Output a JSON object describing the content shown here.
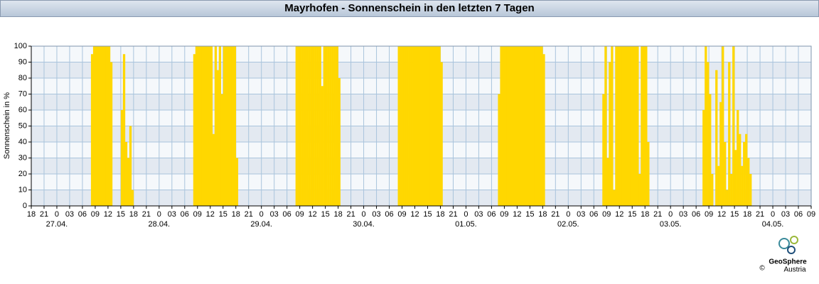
{
  "chart_data": {
    "type": "bar",
    "title": "Mayrhofen - Sonnenschein in den letzten 7 Tagen",
    "ylabel": "Sonnenschein in %",
    "color": "#ffd700",
    "grid": true,
    "xlim": [
      0,
      183
    ],
    "ylim": [
      0,
      100
    ],
    "yticks": [
      0,
      10,
      20,
      30,
      40,
      50,
      60,
      70,
      80,
      90,
      100
    ],
    "xticks": [
      {
        "value": 0,
        "label": "18"
      },
      {
        "value": 3,
        "label": "21"
      },
      {
        "value": 6,
        "label": "0"
      },
      {
        "value": 9,
        "label": "03"
      },
      {
        "value": 12,
        "label": "06"
      },
      {
        "value": 15,
        "label": "09"
      },
      {
        "value": 18,
        "label": "12"
      },
      {
        "value": 21,
        "label": "15"
      },
      {
        "value": 24,
        "label": "18"
      },
      {
        "value": 27,
        "label": "21"
      },
      {
        "value": 30,
        "label": "0"
      },
      {
        "value": 33,
        "label": "03"
      },
      {
        "value": 36,
        "label": "06"
      },
      {
        "value": 39,
        "label": "09"
      },
      {
        "value": 42,
        "label": "12"
      },
      {
        "value": 45,
        "label": "15"
      },
      {
        "value": 48,
        "label": "18"
      },
      {
        "value": 51,
        "label": "21"
      },
      {
        "value": 54,
        "label": "0"
      },
      {
        "value": 57,
        "label": "03"
      },
      {
        "value": 60,
        "label": "06"
      },
      {
        "value": 63,
        "label": "09"
      },
      {
        "value": 66,
        "label": "12"
      },
      {
        "value": 69,
        "label": "15"
      },
      {
        "value": 72,
        "label": "18"
      },
      {
        "value": 75,
        "label": "21"
      },
      {
        "value": 78,
        "label": "0"
      },
      {
        "value": 81,
        "label": "03"
      },
      {
        "value": 84,
        "label": "06"
      },
      {
        "value": 87,
        "label": "09"
      },
      {
        "value": 90,
        "label": "12"
      },
      {
        "value": 93,
        "label": "15"
      },
      {
        "value": 96,
        "label": "18"
      },
      {
        "value": 99,
        "label": "21"
      },
      {
        "value": 102,
        "label": "0"
      },
      {
        "value": 105,
        "label": "03"
      },
      {
        "value": 108,
        "label": "06"
      },
      {
        "value": 111,
        "label": "09"
      },
      {
        "value": 114,
        "label": "12"
      },
      {
        "value": 117,
        "label": "15"
      },
      {
        "value": 120,
        "label": "18"
      },
      {
        "value": 123,
        "label": "21"
      },
      {
        "value": 126,
        "label": "0"
      },
      {
        "value": 129,
        "label": "03"
      },
      {
        "value": 132,
        "label": "06"
      },
      {
        "value": 135,
        "label": "09"
      },
      {
        "value": 138,
        "label": "12"
      },
      {
        "value": 141,
        "label": "15"
      },
      {
        "value": 144,
        "label": "18"
      },
      {
        "value": 147,
        "label": "21"
      },
      {
        "value": 150,
        "label": "0"
      },
      {
        "value": 153,
        "label": "03"
      },
      {
        "value": 156,
        "label": "06"
      },
      {
        "value": 159,
        "label": "09"
      },
      {
        "value": 162,
        "label": "12"
      },
      {
        "value": 165,
        "label": "15"
      },
      {
        "value": 168,
        "label": "18"
      },
      {
        "value": 171,
        "label": "21"
      },
      {
        "value": 174,
        "label": "0"
      },
      {
        "value": 177,
        "label": "03"
      },
      {
        "value": 180,
        "label": "06"
      },
      {
        "value": 183,
        "label": "09"
      }
    ],
    "date_labels": [
      {
        "value": 6,
        "label": "27.04."
      },
      {
        "value": 30,
        "label": "28.04."
      },
      {
        "value": 54,
        "label": "29.04."
      },
      {
        "value": 78,
        "label": "30.04."
      },
      {
        "value": 102,
        "label": "01.05."
      },
      {
        "value": 126,
        "label": "02.05."
      },
      {
        "value": 150,
        "label": "03.05."
      },
      {
        "value": 174,
        "label": "04.05."
      }
    ],
    "x": [
      13,
      13.5,
      14,
      14.5,
      15,
      15.5,
      16,
      16.5,
      17,
      17.5,
      18,
      18.5,
      19,
      19.5,
      20,
      20.5,
      21,
      21.5,
      22,
      22.5,
      23,
      23.5,
      24,
      24.5,
      25,
      37,
      37.5,
      38,
      38.5,
      39,
      39.5,
      40,
      40.5,
      41,
      41.5,
      42,
      42.5,
      43,
      43.5,
      44,
      44.5,
      45,
      45.5,
      46,
      46.5,
      47,
      47.5,
      48,
      48.5,
      49,
      61,
      61.5,
      62,
      62.5,
      63,
      63.5,
      64,
      64.5,
      65,
      65.5,
      66,
      66.5,
      67,
      67.5,
      68,
      68.5,
      69,
      69.5,
      70,
      70.5,
      71,
      71.5,
      72,
      72.5,
      73,
      85,
      85.5,
      86,
      86.5,
      87,
      87.5,
      88,
      88.5,
      89,
      89.5,
      90,
      90.5,
      91,
      91.5,
      92,
      92.5,
      93,
      93.5,
      94,
      94.5,
      95,
      95.5,
      96,
      96.5,
      97,
      109,
      109.5,
      110,
      110.5,
      111,
      111.5,
      112,
      112.5,
      113,
      113.5,
      114,
      114.5,
      115,
      115.5,
      116,
      116.5,
      117,
      117.5,
      118,
      118.5,
      119,
      119.5,
      120,
      120.5,
      121,
      133,
      133.5,
      134,
      134.5,
      135,
      135.5,
      136,
      136.5,
      137,
      137.5,
      138,
      138.5,
      139,
      139.5,
      140,
      140.5,
      141,
      141.5,
      142,
      142.5,
      143,
      143.5,
      144,
      144.5,
      145,
      157,
      157.5,
      158,
      158.5,
      159,
      159.5,
      160,
      160.5,
      161,
      161.5,
      162,
      162.5,
      163,
      163.5,
      164,
      164.5,
      165,
      165.5,
      166,
      166.5,
      167,
      167.5,
      168,
      168.5,
      169
    ],
    "values": [
      0,
      0,
      95,
      100,
      100,
      100,
      100,
      100,
      100,
      100,
      100,
      90,
      0,
      0,
      0,
      0,
      60,
      95,
      40,
      30,
      50,
      10,
      0,
      0,
      0,
      0,
      0,
      95,
      100,
      100,
      100,
      100,
      100,
      100,
      100,
      100,
      45,
      100,
      85,
      100,
      70,
      100,
      100,
      100,
      100,
      100,
      100,
      30,
      0,
      0,
      0,
      0,
      100,
      100,
      100,
      100,
      100,
      100,
      100,
      100,
      100,
      100,
      100,
      100,
      75,
      100,
      100,
      100,
      100,
      100,
      100,
      100,
      80,
      0,
      0,
      0,
      0,
      100,
      100,
      100,
      100,
      100,
      100,
      100,
      100,
      100,
      100,
      100,
      100,
      100,
      100,
      100,
      100,
      100,
      100,
      100,
      100,
      90,
      0,
      0,
      0,
      70,
      100,
      100,
      100,
      100,
      100,
      100,
      100,
      100,
      100,
      100,
      100,
      100,
      100,
      100,
      100,
      100,
      100,
      100,
      100,
      100,
      95,
      0,
      0,
      0,
      0,
      70,
      100,
      30,
      90,
      100,
      10,
      100,
      100,
      100,
      100,
      100,
      100,
      100,
      100,
      100,
      100,
      100,
      20,
      100,
      100,
      100,
      40,
      0,
      0,
      60,
      100,
      90,
      70,
      20,
      0,
      85,
      25,
      65,
      100,
      40,
      10,
      90,
      20,
      100,
      35,
      60,
      45,
      25,
      40,
      45,
      30,
      20,
      0
    ],
    "logo_name": "GeoSphere",
    "logo_sub": "Austria",
    "copyright": "©"
  }
}
